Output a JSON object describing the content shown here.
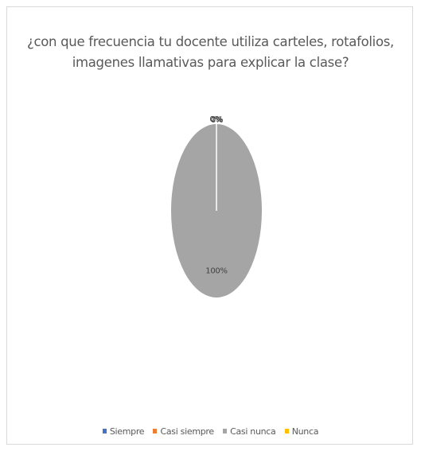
{
  "chart_data": {
    "type": "pie",
    "title_lines": [
      "¿con que frecuencia tu docente utiliza carteles, rotafolios,",
      "imagenes llamativas para explicar la clase?"
    ],
    "categories": [
      "Siempre",
      "Casi siempre",
      "Casi nunca",
      "Nunca"
    ],
    "values": [
      0,
      0,
      100,
      0
    ],
    "data_labels": [
      "0%",
      "0%",
      "100%",
      "0%"
    ],
    "colors": [
      "#4472c4",
      "#ed7d31",
      "#a5a5a5",
      "#ffc000"
    ],
    "legend_position": "bottom"
  }
}
